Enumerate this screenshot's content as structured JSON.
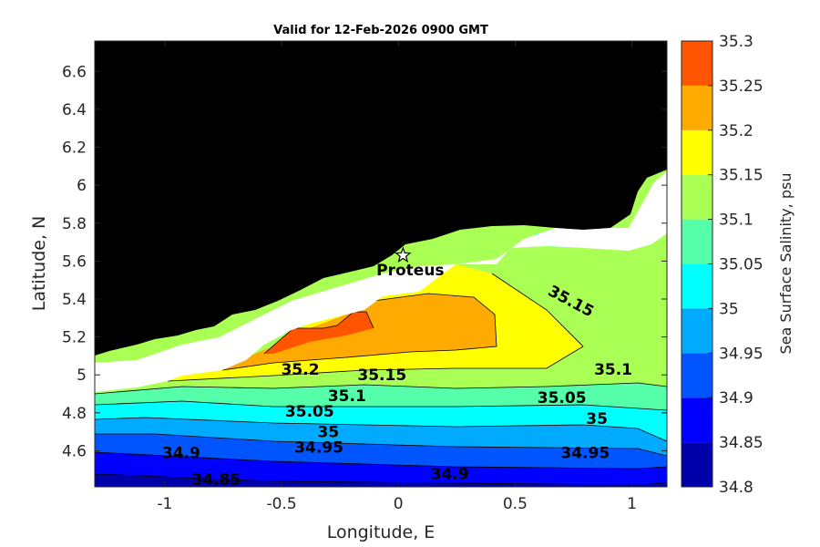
{
  "chart_data": {
    "type": "filled-contour map",
    "title": "Valid for 12-Feb-2026 0900 GMT",
    "xlabel": "Longitude, E",
    "ylabel": "Latitude, N",
    "xlim": [
      -1.3,
      1.15
    ],
    "ylim": [
      4.41,
      6.76
    ],
    "xticks": [
      -1,
      -0.5,
      0,
      0.5,
      1
    ],
    "xtick_labels": [
      "-1",
      "-0.5",
      "0",
      "0.5",
      "1"
    ],
    "yticks": [
      4.6,
      4.8,
      5,
      5.2,
      5.4,
      5.6,
      5.8,
      6,
      6.2,
      6.4,
      6.6
    ],
    "ytick_labels": [
      "4.6",
      "4.8",
      "5",
      "5.2",
      "5.4",
      "5.6",
      "5.8",
      "6",
      "6.2",
      "6.4",
      "6.6"
    ],
    "colorbar": {
      "label": "Sea Surface Salinity, psu",
      "levels": [
        34.8,
        34.85,
        34.9,
        34.95,
        35,
        35.05,
        35.1,
        35.15,
        35.2,
        35.25,
        35.3
      ],
      "tick_labels": [
        "34.8",
        "34.85",
        "34.9",
        "34.95",
        "35",
        "35.05",
        "35.1",
        "35.15",
        "35.2",
        "35.25",
        "35.3"
      ],
      "colors": [
        "#0000aa",
        "#0000ff",
        "#0055ff",
        "#00aaff",
        "#00ffff",
        "#55ffaa",
        "#aaff55",
        "#ffff00",
        "#ffaa00",
        "#ff5500"
      ]
    },
    "land_color": "#000000",
    "nodata_color": "#ffffff",
    "contour_labels": [
      {
        "text": "35.2",
        "lon": -0.42,
        "lat": 5.03
      },
      {
        "text": "35.15",
        "lon": -0.07,
        "lat": 5.0
      },
      {
        "text": "35.1",
        "lon": -0.22,
        "lat": 4.89
      },
      {
        "text": "35.05",
        "lon": -0.38,
        "lat": 4.81
      },
      {
        "text": "35",
        "lon": -0.3,
        "lat": 4.7
      },
      {
        "text": "34.95",
        "lon": -0.34,
        "lat": 4.62
      },
      {
        "text": "34.9",
        "lon": -0.93,
        "lat": 4.59
      },
      {
        "text": "34.85",
        "lon": -0.78,
        "lat": 4.45
      },
      {
        "text": "34.9",
        "lon": 0.22,
        "lat": 4.48
      },
      {
        "text": "34.95",
        "lon": 0.8,
        "lat": 4.59
      },
      {
        "text": "35",
        "lon": 0.85,
        "lat": 4.77
      },
      {
        "text": "35.05",
        "lon": 0.7,
        "lat": 4.88
      },
      {
        "text": "35.1",
        "lon": 0.92,
        "lat": 5.03
      },
      {
        "text": "35.15",
        "lon": 0.74,
        "lat": 5.39
      }
    ],
    "station": {
      "name": "Proteus",
      "lon": 0.02,
      "lat": 5.63
    }
  }
}
